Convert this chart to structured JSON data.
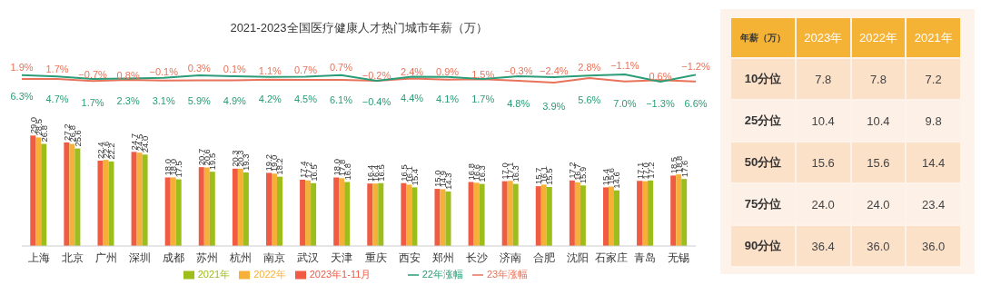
{
  "chart_data": [
    {
      "type": "line",
      "title": "2021-2023全国医疗健康人才热门城市年薪（万）",
      "categories": [
        null,
        null,
        null,
        null,
        null,
        null,
        null,
        null,
        null,
        null,
        null,
        null,
        null,
        null,
        null,
        null,
        null,
        null,
        null,
        null
      ],
      "series": [
        {
          "name": "23年涨幅",
          "color": "#e8735a",
          "values": [
            1.9,
            1.7,
            -0.7,
            0.8,
            -0.1,
            0.3,
            0.1,
            1.1,
            0.7,
            0.7,
            -0.2,
            2.4,
            0.9,
            1.5,
            -0.3,
            -2.4,
            2.8,
            -1.1,
            0.6,
            -1.2
          ],
          "value_labels": [
            "1.9%",
            "1.7%",
            "−0.7%",
            "0.8%",
            "−0.1%",
            "0.3%",
            "0.1%",
            "1.1%",
            "0.7%",
            "0.7%",
            "−0.2%",
            "2.4%",
            "0.9%",
            "1.5%",
            "−0.3%",
            "−2.4%",
            "2.8%",
            "−1.1%",
            "0.6%",
            "−1.2%"
          ]
        },
        {
          "name": "22年涨幅",
          "color": "#2a9d78",
          "values": [
            6.3,
            4.7,
            1.7,
            2.3,
            3.1,
            5.9,
            4.9,
            4.2,
            4.5,
            6.1,
            -0.4,
            4.4,
            4.1,
            1.7,
            4.8,
            3.9,
            5.6,
            7.0,
            -1.3,
            6.6
          ],
          "value_labels": [
            "6.3%",
            "4.7%",
            "1.7%",
            "2.3%",
            "3.1%",
            "5.9%",
            "4.9%",
            "4.2%",
            "4.5%",
            "6.1%",
            "−0.4%",
            "4.4%",
            "4.1%",
            "1.7%",
            "4.8%",
            "3.9%",
            "5.6%",
            "7.0%",
            "−1.3%",
            "6.6%"
          ]
        }
      ],
      "legend": "bottom",
      "marker": "none"
    },
    {
      "type": "bar",
      "categories": [
        "上海",
        "北京",
        "广州",
        "深圳",
        "成都",
        "苏州",
        "杭州",
        "南京",
        "武汉",
        "天津",
        "重庆",
        "西安",
        "郑州",
        "长沙",
        "济南",
        "合肥",
        "沈阳",
        "石家庄",
        "青岛",
        "无锡"
      ],
      "series": [
        {
          "name": "2023年1-11月",
          "color": "#ef5b43",
          "values": [
            29.0,
            27.2,
            22.4,
            24.7,
            18.0,
            20.7,
            20.3,
            19.2,
            17.4,
            18.0,
            16.4,
            16.5,
            15.0,
            16.8,
            17.0,
            15.7,
            17.2,
            15.4,
            17.1,
            18.5
          ],
          "value_labels": [
            "29.0",
            "27.2",
            "22.4",
            "24.7",
            "18.0",
            "20.7",
            "20.3",
            "19.2",
            "17.4",
            "18.0",
            "16.4",
            "16.5",
            "15.0",
            "16.8",
            "17.0",
            "15.7",
            "17.2",
            "15.4",
            "17.1",
            "18.5"
          ]
        },
        {
          "name": "2022年",
          "color": "#f6b03a",
          "values": [
            28.5,
            26.8,
            22.6,
            24.5,
            18.0,
            20.6,
            20.3,
            19.0,
            17.2,
            17.8,
            16.4,
            16.1,
            14.9,
            16.6,
            17.1,
            16.1,
            16.7,
            15.6,
            17.0,
            18.8
          ],
          "value_labels": [
            "28.5",
            "26.8",
            "22.6",
            "24.5",
            "18.0",
            "20.6",
            "20.3",
            "19.0",
            "17.2",
            "17.8",
            "16.4",
            "16.1",
            "14.9",
            "16.6",
            "17.1",
            "16.1",
            "16.7",
            "15.6",
            "17.0",
            "18.8"
          ]
        },
        {
          "name": "2021年",
          "color": "#9dbd1a",
          "values": [
            26.8,
            25.6,
            22.2,
            24.0,
            17.5,
            19.5,
            19.3,
            18.2,
            16.5,
            16.8,
            16.5,
            15.4,
            14.3,
            16.3,
            16.3,
            15.5,
            15.9,
            14.6,
            17.2,
            17.6
          ],
          "value_labels": [
            "26.8",
            "25.6",
            "22.2",
            "24.0",
            "17.5",
            "19.5",
            "19.3",
            "18.2",
            "16.5",
            "16.8",
            "16.5",
            "15.4",
            "14.3",
            "16.3",
            "16.3",
            "15.5",
            "15.9",
            "14.6",
            "17.2",
            "17.6"
          ]
        }
      ],
      "legend": "bottom"
    },
    {
      "type": "other",
      "title": "年薪（万）",
      "categories": [
        "2023年",
        "2022年",
        "2021年"
      ],
      "y_categories": [
        "10分位",
        "25分位",
        "50分位",
        "75分位",
        "90分位"
      ],
      "cell_labels": [
        [
          "7.8",
          "7.8",
          "7.2"
        ],
        [
          "10.4",
          "10.4",
          "9.8"
        ],
        [
          "15.6",
          "15.6",
          "14.4"
        ],
        [
          "24.0",
          "24.0",
          "23.4"
        ],
        [
          "36.4",
          "36.0",
          "36.0"
        ]
      ]
    }
  ]
}
